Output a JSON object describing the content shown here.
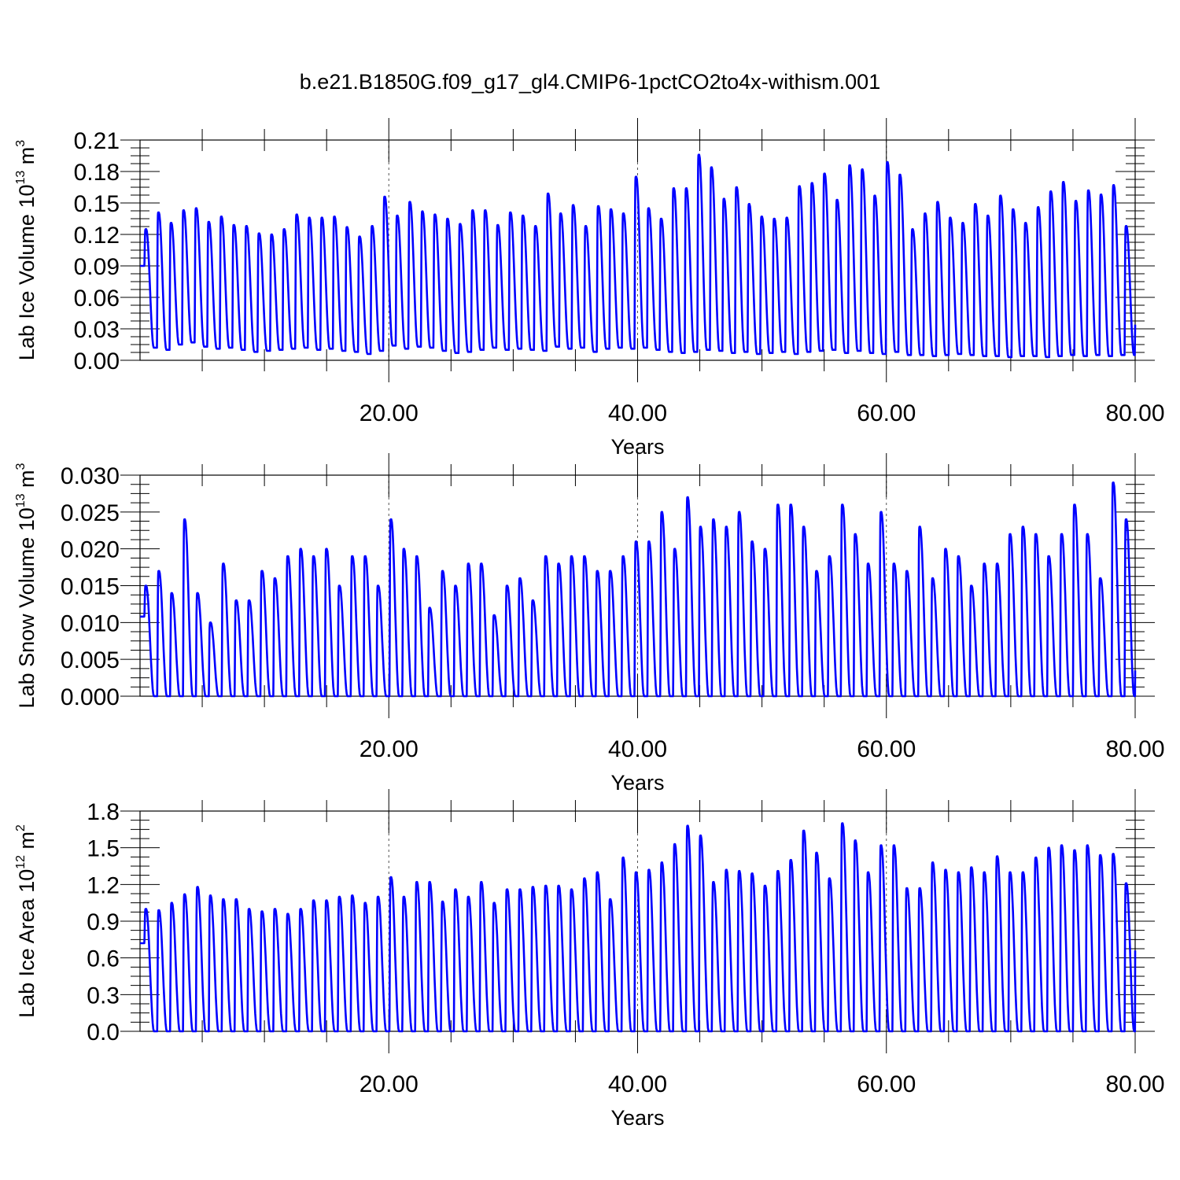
{
  "title": "b.e21.B1850G.f09_g17_gl4.CMIP6-1pctCO2to4x-withism.001",
  "chart_data": [
    {
      "type": "line",
      "title": "b.e21.B1850G.f09_g17_gl4.CMIP6-1pctCO2to4x-withism.001",
      "xlabel": "Years",
      "ylabel": {
        "base": "Lab Ice Volume 10",
        "exp": "13",
        "unit": " m",
        "unit_exp": "3"
      },
      "xlim": [
        0,
        80
      ],
      "ylim": [
        0,
        0.21
      ],
      "xticks": [
        "20.00",
        "40.00",
        "60.00",
        "80.00"
      ],
      "yticks": [
        "0.00",
        "0.03",
        "0.06",
        "0.09",
        "0.12",
        "0.15",
        "0.18",
        "0.21"
      ],
      "grid": "dashed vertical lines at 20, 40, 60",
      "series_color": "#0000ff",
      "annual_cycle": "seasonal peaks once per year, minima between peaks",
      "peaks": [
        0.125,
        0.141,
        0.131,
        0.143,
        0.145,
        0.132,
        0.137,
        0.129,
        0.128,
        0.121,
        0.12,
        0.125,
        0.139,
        0.136,
        0.136,
        0.137,
        0.127,
        0.118,
        0.128,
        0.156,
        0.138,
        0.151,
        0.142,
        0.139,
        0.135,
        0.13,
        0.143,
        0.143,
        0.129,
        0.141,
        0.138,
        0.128,
        0.159,
        0.14,
        0.148,
        0.128,
        0.147,
        0.144,
        0.14,
        0.175,
        0.145,
        0.135,
        0.164,
        0.164,
        0.196,
        0.184,
        0.154,
        0.165,
        0.149,
        0.137,
        0.135,
        0.136,
        0.166,
        0.169,
        0.178,
        0.153,
        0.186,
        0.182,
        0.157,
        0.189,
        0.177,
        0.125,
        0.14,
        0.151,
        0.136,
        0.131,
        0.149,
        0.138,
        0.157,
        0.144,
        0.131,
        0.146,
        0.161,
        0.17,
        0.152,
        0.162,
        0.158,
        0.167,
        0.128
      ],
      "troughs": [
        0.012,
        0.01,
        0.015,
        0.017,
        0.013,
        0.011,
        0.012,
        0.01,
        0.008,
        0.009,
        0.01,
        0.011,
        0.012,
        0.01,
        0.011,
        0.009,
        0.008,
        0.006,
        0.009,
        0.014,
        0.011,
        0.013,
        0.012,
        0.009,
        0.007,
        0.008,
        0.01,
        0.012,
        0.01,
        0.011,
        0.01,
        0.009,
        0.013,
        0.011,
        0.012,
        0.008,
        0.011,
        0.012,
        0.011,
        0.012,
        0.01,
        0.008,
        0.007,
        0.008,
        0.01,
        0.009,
        0.007,
        0.008,
        0.006,
        0.007,
        0.008,
        0.006,
        0.008,
        0.009,
        0.01,
        0.007,
        0.009,
        0.007,
        0.006,
        0.008,
        0.005,
        0.005,
        0.004,
        0.005,
        0.006,
        0.005,
        0.004,
        0.004,
        0.003,
        0.004,
        0.004,
        0.003,
        0.004,
        0.005,
        0.004,
        0.005,
        0.004,
        0.005,
        0.005
      ],
      "end_value": 0.034
    },
    {
      "type": "line",
      "xlabel": "Years",
      "ylabel": {
        "base": "Lab Snow Volume 10",
        "exp": "13",
        "unit": " m",
        "unit_exp": "3"
      },
      "xlim": [
        0,
        80
      ],
      "ylim": [
        0,
        0.03
      ],
      "xticks": [
        "20.00",
        "40.00",
        "60.00",
        "80.00"
      ],
      "yticks": [
        "0.000",
        "0.005",
        "0.010",
        "0.015",
        "0.020",
        "0.025",
        "0.030"
      ],
      "grid": "dashed vertical lines at 20, 40, 60",
      "series_color": "#0000ff",
      "annual_cycle": "seasonal peaks once per year, near-zero minima",
      "peaks": [
        0.015,
        0.017,
        0.014,
        0.024,
        0.014,
        0.01,
        0.018,
        0.013,
        0.013,
        0.017,
        0.016,
        0.019,
        0.02,
        0.019,
        0.02,
        0.015,
        0.019,
        0.019,
        0.015,
        0.024,
        0.02,
        0.019,
        0.012,
        0.017,
        0.015,
        0.018,
        0.018,
        0.011,
        0.015,
        0.016,
        0.013,
        0.019,
        0.018,
        0.019,
        0.019,
        0.017,
        0.017,
        0.019,
        0.021,
        0.021,
        0.025,
        0.02,
        0.027,
        0.023,
        0.024,
        0.023,
        0.025,
        0.021,
        0.02,
        0.026,
        0.026,
        0.023,
        0.017,
        0.019,
        0.026,
        0.022,
        0.018,
        0.025,
        0.018,
        0.017,
        0.023,
        0.016,
        0.02,
        0.019,
        0.015,
        0.018,
        0.018,
        0.022,
        0.023,
        0.022,
        0.019,
        0.022,
        0.026,
        0.022,
        0.016,
        0.029,
        0.024
      ],
      "end_value": 0.0035
    },
    {
      "type": "line",
      "xlabel": "Years",
      "ylabel": {
        "base": "Lab Ice Area 10",
        "exp": "12",
        "unit": " m",
        "unit_exp": "2"
      },
      "xlim": [
        0,
        80
      ],
      "ylim": [
        0,
        1.8
      ],
      "xticks": [
        "20.00",
        "40.00",
        "60.00",
        "80.00"
      ],
      "yticks": [
        "0.0",
        "0.3",
        "0.6",
        "0.9",
        "1.2",
        "1.5",
        "1.8"
      ],
      "grid": "dashed vertical lines at 20, 40, 60",
      "series_color": "#0000ff",
      "annual_cycle": "seasonal peaks once per year, minima between peaks",
      "peaks": [
        1.0,
        0.99,
        1.05,
        1.12,
        1.18,
        1.11,
        1.08,
        1.08,
        1.0,
        0.98,
        1.0,
        0.96,
        1.0,
        1.07,
        1.07,
        1.1,
        1.11,
        1.05,
        1.1,
        1.26,
        1.1,
        1.22,
        1.22,
        1.06,
        1.16,
        1.1,
        1.22,
        1.05,
        1.16,
        1.16,
        1.18,
        1.19,
        1.19,
        1.16,
        1.25,
        1.3,
        1.08,
        1.42,
        1.3,
        1.32,
        1.38,
        1.53,
        1.68,
        1.6,
        1.22,
        1.32,
        1.31,
        1.29,
        1.19,
        1.31,
        1.4,
        1.64,
        1.46,
        1.25,
        1.7,
        1.56,
        1.3,
        1.52,
        1.52,
        1.17,
        1.17,
        1.38,
        1.32,
        1.3,
        1.34,
        1.3,
        1.43,
        1.3,
        1.3,
        1.42,
        1.5,
        1.52,
        1.48,
        1.52,
        1.44,
        1.45,
        1.21
      ],
      "end_value": 0.66
    }
  ]
}
